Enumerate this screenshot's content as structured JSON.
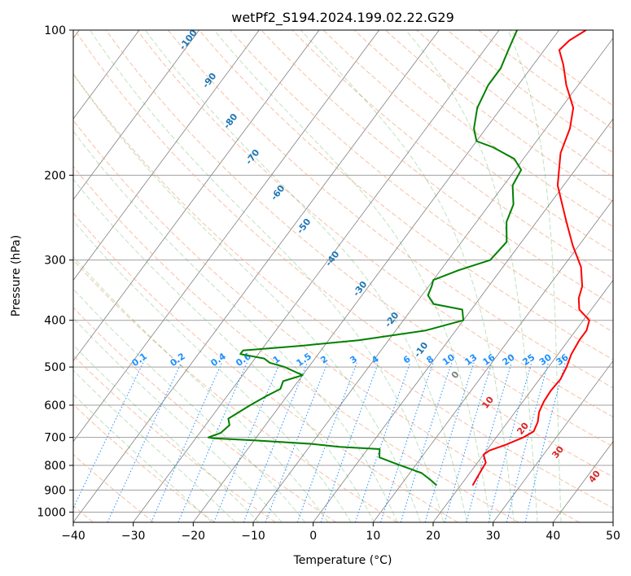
{
  "chart_data": {
    "type": "line",
    "diagram": "skew-T log-P",
    "title": "wetPf2_S194.2024.199.02.22.G29",
    "xlabel": "Temperature (°C)",
    "ylabel": "Pressure (hPa)",
    "xlim": [
      -40,
      50
    ],
    "ylim": [
      1050,
      100
    ],
    "y_scale": "log",
    "x_ticks": [
      "-40",
      "-30",
      "-20",
      "-10",
      "0",
      "10",
      "20",
      "30",
      "40",
      "50"
    ],
    "y_ticks": [
      "100",
      "200",
      "300",
      "400",
      "500",
      "600",
      "700",
      "800",
      "900",
      "1000"
    ],
    "grid": true,
    "series": [
      {
        "key": "temperature",
        "color": "#ff0000",
        "points": [
          [
            22.0,
            880
          ],
          [
            21.8,
            850
          ],
          [
            21.6,
            820
          ],
          [
            21.4,
            790
          ],
          [
            20.0,
            760
          ],
          [
            20.5,
            745
          ],
          [
            22.5,
            725
          ],
          [
            24.5,
            700
          ],
          [
            25.5,
            680
          ],
          [
            25.0,
            650
          ],
          [
            24.0,
            620
          ],
          [
            23.5,
            590
          ],
          [
            23.3,
            560
          ],
          [
            23.5,
            530
          ],
          [
            23.0,
            500
          ],
          [
            22.2,
            470
          ],
          [
            21.8,
            440
          ],
          [
            21.8,
            420
          ],
          [
            21.0,
            400
          ],
          [
            18.0,
            380
          ],
          [
            16.5,
            360
          ],
          [
            15.6,
            340
          ],
          [
            13.0,
            310
          ],
          [
            9.0,
            280
          ],
          [
            5.0,
            250
          ],
          [
            -1.0,
            210
          ],
          [
            -4.5,
            180
          ],
          [
            -6.0,
            160
          ],
          [
            -8.0,
            145
          ],
          [
            -12.0,
            130
          ],
          [
            -15.0,
            118
          ],
          [
            -17.5,
            110
          ],
          [
            -17.0,
            105
          ],
          [
            -15.5,
            100
          ]
        ]
      },
      {
        "key": "dewpoint",
        "color": "#008000",
        "points": [
          [
            16.0,
            880
          ],
          [
            14.5,
            860
          ],
          [
            12.0,
            830
          ],
          [
            9.0,
            810
          ],
          [
            6.0,
            790
          ],
          [
            3.0,
            770
          ],
          [
            2.0,
            740
          ],
          [
            -5.0,
            732
          ],
          [
            -10.0,
            722
          ],
          [
            -20.0,
            710
          ],
          [
            -27.0,
            703
          ],
          [
            -28.0,
            700
          ],
          [
            -26.5,
            685
          ],
          [
            -26.0,
            660
          ],
          [
            -27.0,
            640
          ],
          [
            -26.0,
            620
          ],
          [
            -25.0,
            600
          ],
          [
            -23.5,
            575
          ],
          [
            -22.0,
            555
          ],
          [
            -22.5,
            535
          ],
          [
            -20.0,
            520
          ],
          [
            -24.0,
            500
          ],
          [
            -27.0,
            490
          ],
          [
            -28.5,
            480
          ],
          [
            -33.0,
            470
          ],
          [
            -33.0,
            462
          ],
          [
            -24.0,
            452
          ],
          [
            -15.0,
            440
          ],
          [
            -5.0,
            420
          ],
          [
            0.0,
            400
          ],
          [
            -1.5,
            380
          ],
          [
            -7.0,
            370
          ],
          [
            -9.0,
            355
          ],
          [
            -9.5,
            340
          ],
          [
            -10.0,
            330
          ],
          [
            -7.0,
            315
          ],
          [
            -3.0,
            300
          ],
          [
            -2.5,
            275
          ],
          [
            -5.0,
            250
          ],
          [
            -6.0,
            230
          ],
          [
            -8.5,
            210
          ],
          [
            -9.0,
            195
          ],
          [
            -11.5,
            185
          ],
          [
            -16.5,
            175
          ],
          [
            -20.0,
            170
          ],
          [
            -22.0,
            160
          ],
          [
            -24.0,
            145
          ],
          [
            -25.0,
            130
          ],
          [
            -25.0,
            120
          ],
          [
            -26.0,
            110
          ],
          [
            -26.5,
            105
          ],
          [
            -27.0,
            100
          ]
        ]
      }
    ],
    "dry_adiabat_labels": [
      "-100",
      "-90",
      "-80",
      "-70",
      "-60",
      "-50",
      "-40",
      "-30",
      "-20",
      "-10",
      "0",
      "10",
      "20",
      "30",
      "40"
    ],
    "mixing_ratio_labels": [
      "0.1",
      "0.2",
      "0.4",
      "0.6",
      "1",
      "1.5",
      "2",
      "3",
      "4",
      "6",
      "8",
      "10",
      "13",
      "16",
      "20",
      "25",
      "30",
      "36"
    ],
    "colors": {
      "temperature": "#ff0000",
      "dewpoint": "#008000",
      "isotherm": "#808080",
      "isobar": "#a0a0a0",
      "dry_adiabat": "#f4a582",
      "moist_adiabat": "#2ca02c",
      "mixing_ratio": "#1e90ff",
      "negative_label": "#1f77b4",
      "zero_label": "#808080",
      "positive_label": "#d62728"
    }
  }
}
